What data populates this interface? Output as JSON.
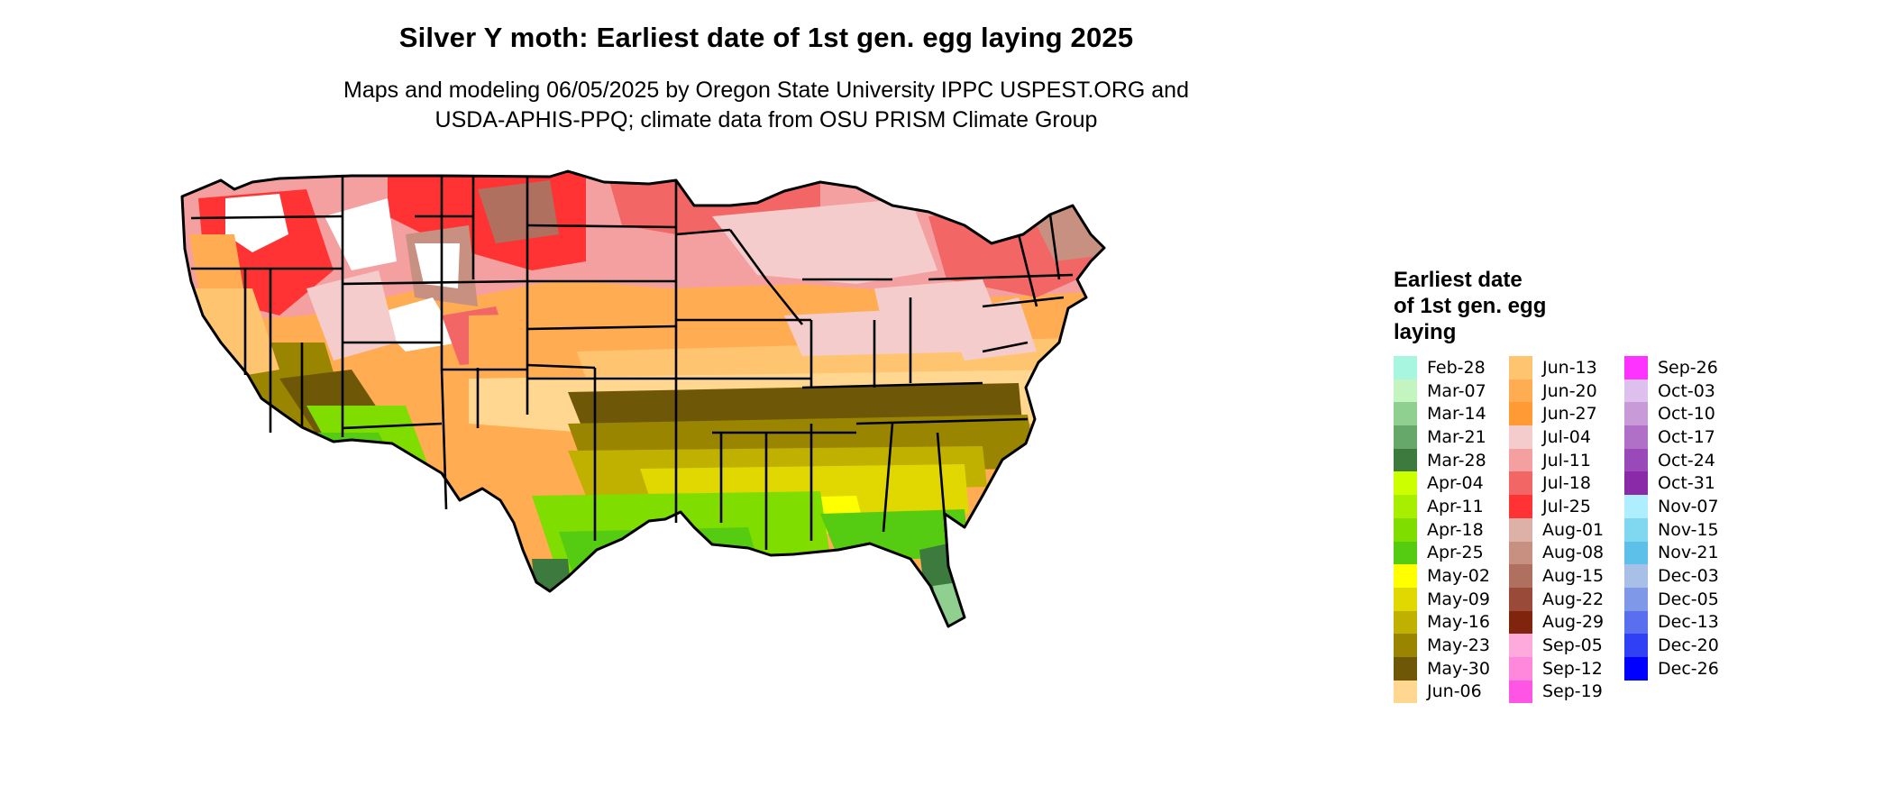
{
  "title": "Silver Y moth: Earliest date of 1st gen. egg laying 2025",
  "subtitle": {
    "line1": "Maps and modeling 06/05/2025 by Oregon State University IPPC USPEST.ORG and",
    "line2": "USDA-APHIS-PPQ; climate data from OSU PRISM Climate Group"
  },
  "legend": {
    "title_lines": [
      "Earliest date",
      "of 1st gen. egg",
      "laying"
    ],
    "columns": [
      [
        {
          "label": "Feb-28",
          "color": "#a8f5e0"
        },
        {
          "label": "Mar-07",
          "color": "#c4f5c0"
        },
        {
          "label": "Mar-14",
          "color": "#8fcf8f"
        },
        {
          "label": "Mar-21",
          "color": "#66a86a"
        },
        {
          "label": "Mar-28",
          "color": "#3d7a3e"
        },
        {
          "label": "Apr-04",
          "color": "#ccff00"
        },
        {
          "label": "Apr-11",
          "color": "#a8ee00"
        },
        {
          "label": "Apr-18",
          "color": "#7fdd00"
        },
        {
          "label": "Apr-25",
          "color": "#55cc11"
        },
        {
          "label": "May-02",
          "color": "#ffff00"
        },
        {
          "label": "May-09",
          "color": "#e0d800"
        },
        {
          "label": "May-16",
          "color": "#c0b000"
        },
        {
          "label": "May-23",
          "color": "#9a8500"
        },
        {
          "label": "May-30",
          "color": "#6e5808"
        },
        {
          "label": "Jun-06",
          "color": "#ffd790"
        }
      ],
      [
        {
          "label": "Jun-13",
          "color": "#ffc470"
        },
        {
          "label": "Jun-20",
          "color": "#ffac52"
        },
        {
          "label": "Jun-27",
          "color": "#ff9a35"
        },
        {
          "label": "Jul-04",
          "color": "#f5cccc"
        },
        {
          "label": "Jul-11",
          "color": "#f5a0a0"
        },
        {
          "label": "Jul-18",
          "color": "#f26666"
        },
        {
          "label": "Jul-25",
          "color": "#ff3333"
        },
        {
          "label": "Aug-01",
          "color": "#ddb0a8"
        },
        {
          "label": "Aug-08",
          "color": "#c89080"
        },
        {
          "label": "Aug-15",
          "color": "#b07060"
        },
        {
          "label": "Aug-22",
          "color": "#9a4a38"
        },
        {
          "label": "Aug-29",
          "color": "#80240e"
        },
        {
          "label": "Sep-05",
          "color": "#ffaadd"
        },
        {
          "label": "Sep-12",
          "color": "#ff88dd"
        },
        {
          "label": "Sep-19",
          "color": "#ff55e5"
        }
      ],
      [
        {
          "label": "Sep-26",
          "color": "#ff33ff"
        },
        {
          "label": "Oct-03",
          "color": "#dec0ee"
        },
        {
          "label": "Oct-10",
          "color": "#c99ad8"
        },
        {
          "label": "Oct-17",
          "color": "#b070c8"
        },
        {
          "label": "Oct-24",
          "color": "#9a4ab8"
        },
        {
          "label": "Oct-31",
          "color": "#8a2aa8"
        },
        {
          "label": "Nov-07",
          "color": "#aeeeff"
        },
        {
          "label": "Nov-15",
          "color": "#80d8f0"
        },
        {
          "label": "Nov-21",
          "color": "#5cc0e8"
        },
        {
          "label": "Dec-03",
          "color": "#a8c0e8"
        },
        {
          "label": "Dec-05",
          "color": "#8098e8"
        },
        {
          "label": "Dec-13",
          "color": "#5a6ff0"
        },
        {
          "label": "Dec-20",
          "color": "#3040f5"
        },
        {
          "label": "Dec-26",
          "color": "#0000ff"
        }
      ]
    ]
  }
}
